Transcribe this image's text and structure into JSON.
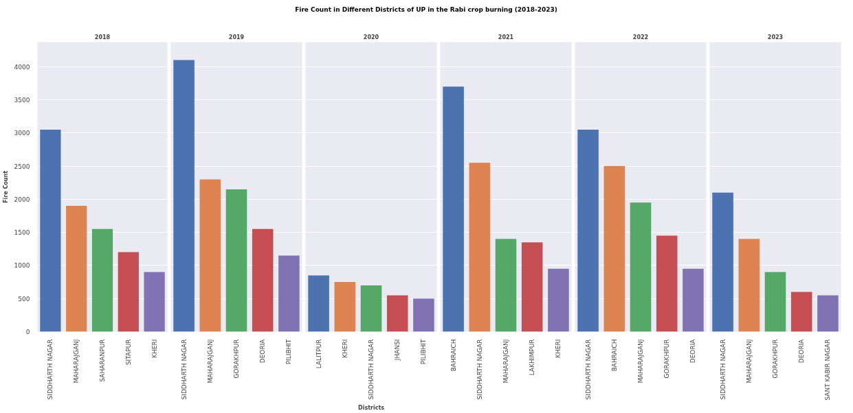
{
  "chart_data": [
    {
      "type": "bar",
      "title": "2018",
      "annotations": [
        "Fire Count in Different Districts of UP in the Rabi crop burning (2018-2023)"
      ],
      "ylabel": "Fire Count",
      "categories": [
        "SIDDHARTH NAGAR",
        "MAHARAJGANJ",
        "SAHARANPUR",
        "SITAPUR",
        "KHERI"
      ],
      "values": [
        3050,
        1900,
        1550,
        1200,
        900
      ],
      "colors": [
        "#4c72b0",
        "#dd8452",
        "#55a868",
        "#c44e52",
        "#8172b3"
      ],
      "ylim": [
        0,
        4370
      ],
      "yticks": [
        0,
        500,
        1000,
        1500,
        2000,
        2500,
        3000,
        3500,
        4000
      ],
      "grid": "y"
    },
    {
      "type": "bar",
      "title": "2019",
      "categories": [
        "SIDDHARTH NAGAR",
        "MAHARAJGANJ",
        "GORAKHPUR",
        "DEORIA",
        "PILIBHIT"
      ],
      "values": [
        4100,
        2300,
        2150,
        1550,
        1150
      ],
      "colors": [
        "#4c72b0",
        "#dd8452",
        "#55a868",
        "#c44e52",
        "#8172b3"
      ],
      "ylim": [
        0,
        4370
      ],
      "yticks": [
        0,
        500,
        1000,
        1500,
        2000,
        2500,
        3000,
        3500,
        4000
      ],
      "grid": "y",
      "tick_labels": "x"
    },
    {
      "type": "bar",
      "title": "2020",
      "xlabel": "Districts",
      "categories": [
        "LALITPUR",
        "KHERI",
        "SIDDHARTH NAGAR",
        "JHANSI",
        "PILIBHIT"
      ],
      "values": [
        850,
        750,
        700,
        550,
        500
      ],
      "colors": [
        "#4c72b0",
        "#dd8452",
        "#55a868",
        "#c44e52",
        "#8172b3"
      ],
      "ylim": [
        0,
        4370
      ],
      "yticks": [
        0,
        500,
        1000,
        1500,
        2000,
        2500,
        3000,
        3500,
        4000
      ],
      "grid": "y",
      "tick_labels": "x"
    },
    {
      "type": "bar",
      "title": "2021",
      "categories": [
        "BAHRAICH",
        "SIDDHARTH NAGAR",
        "MAHARAJGANJ",
        "LAKHIMPUR",
        "KHERI"
      ],
      "values": [
        3700,
        2550,
        1400,
        1350,
        950
      ],
      "colors": [
        "#4c72b0",
        "#dd8452",
        "#55a868",
        "#c44e52",
        "#8172b3"
      ],
      "ylim": [
        0,
        4370
      ],
      "yticks": [
        0,
        500,
        1000,
        1500,
        2000,
        2500,
        3000,
        3500,
        4000
      ],
      "grid": "y",
      "tick_labels": "x"
    },
    {
      "type": "bar",
      "title": "2022",
      "categories": [
        "SIDDHARTH NAGAR",
        "BAHRAICH",
        "MAHARAJGANJ",
        "GORAKHPUR",
        "DEORIA"
      ],
      "values": [
        3050,
        2500,
        1950,
        1450,
        950
      ],
      "colors": [
        "#4c72b0",
        "#dd8452",
        "#55a868",
        "#c44e52",
        "#8172b3"
      ],
      "ylim": [
        0,
        4370
      ],
      "yticks": [
        0,
        500,
        1000,
        1500,
        2000,
        2500,
        3000,
        3500,
        4000
      ],
      "grid": "y",
      "tick_labels": "x"
    },
    {
      "type": "bar",
      "title": "2023",
      "categories": [
        "SIDDHARTH NAGAR",
        "MAHARAJGANJ",
        "GORAKHPUR",
        "DEORIA",
        "SANT KABIR NAGAR"
      ],
      "values": [
        2100,
        1400,
        900,
        600,
        550
      ],
      "colors": [
        "#4c72b0",
        "#dd8452",
        "#55a868",
        "#c44e52",
        "#8172b3"
      ],
      "ylim": [
        0,
        4370
      ],
      "yticks": [
        0,
        500,
        1000,
        1500,
        2000,
        2500,
        3000,
        3500,
        4000
      ],
      "grid": "y",
      "tick_labels": "x"
    }
  ]
}
